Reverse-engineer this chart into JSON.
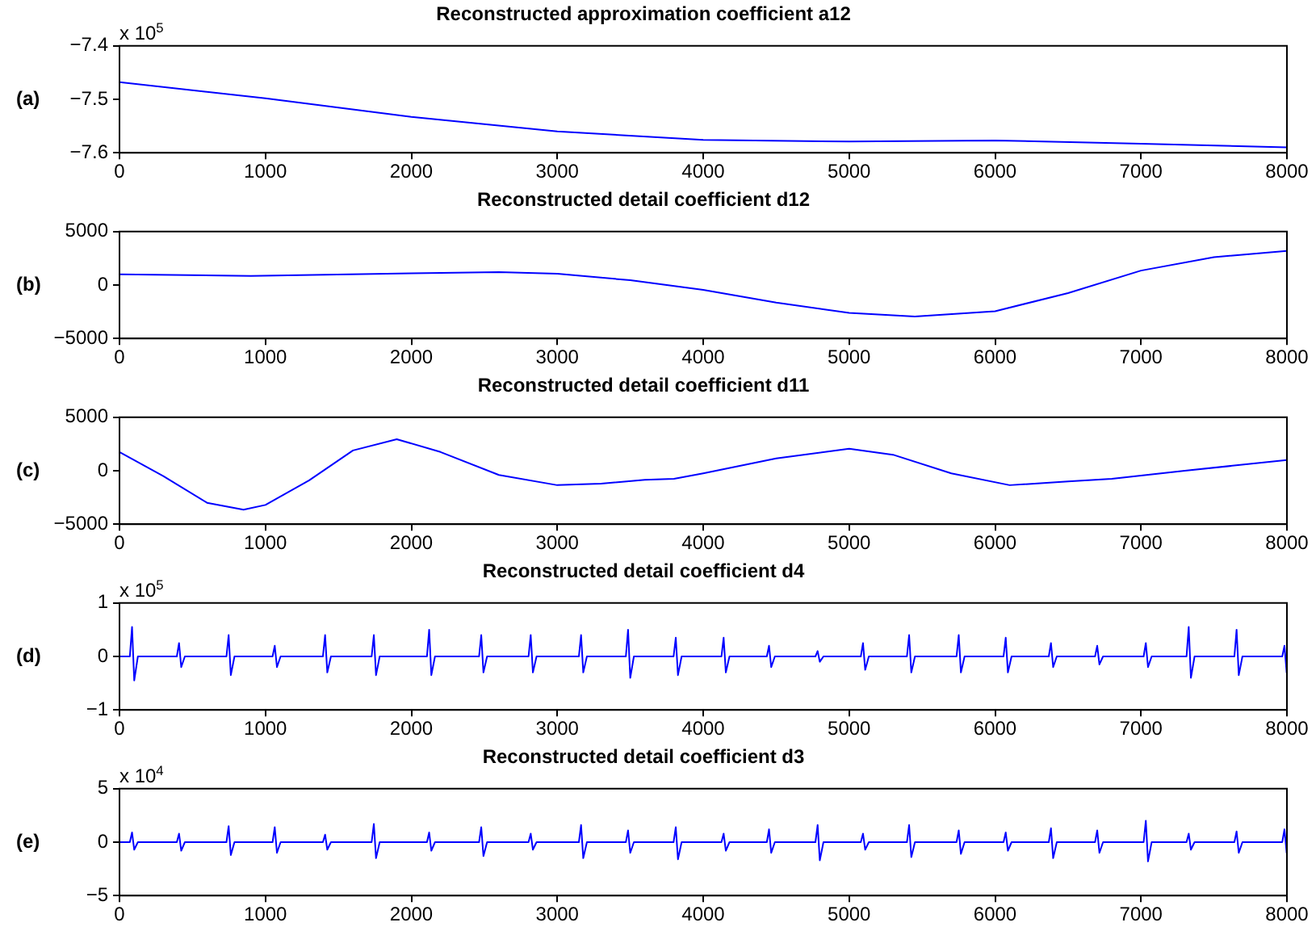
{
  "chart_data": [
    {
      "type": "line",
      "title": "Reconstructed approximation coefficient a12",
      "ylabel": "(a)",
      "annotations": [
        "x 10$^{5}$"
      ],
      "x": [
        0,
        1000,
        2000,
        3000,
        4000,
        5000,
        6000,
        7000,
        8000
      ],
      "series": [
        {
          "color": "#0000ff",
          "values": [
            -7.468,
            -7.498,
            -7.533,
            -7.56,
            -7.576,
            -7.579,
            -7.577,
            -7.583,
            -7.59
          ]
        }
      ],
      "xlim": [
        0,
        8000
      ],
      "xticks": [
        0,
        1000,
        2000,
        3000,
        4000,
        5000,
        6000,
        7000,
        8000
      ],
      "ylim": [
        -7.6,
        -7.4
      ],
      "yticks": [
        -7.6,
        -7.5,
        -7.4
      ],
      "grid": false,
      "legend": false,
      "marker": "none",
      "line_style": "solid"
    },
    {
      "type": "line",
      "title": "Reconstructed detail coefficient d12",
      "ylabel": "(b)",
      "x": [
        0,
        900,
        2000,
        2600,
        3000,
        3500,
        4000,
        4500,
        5000,
        5450,
        6000,
        6500,
        7000,
        7500,
        8000
      ],
      "series": [
        {
          "color": "#0000ff",
          "values": [
            1000,
            850,
            1100,
            1200,
            1050,
            450,
            -450,
            -1650,
            -2600,
            -2950,
            -2450,
            -750,
            1350,
            2600,
            3200
          ]
        }
      ],
      "xlim": [
        0,
        8000
      ],
      "xticks": [
        0,
        1000,
        2000,
        3000,
        4000,
        5000,
        6000,
        7000,
        8000
      ],
      "ylim": [
        -5000,
        5000
      ],
      "yticks": [
        -5000,
        0,
        5000
      ],
      "grid": false,
      "legend": false,
      "marker": "none",
      "line_style": "solid"
    },
    {
      "type": "line",
      "title": "Reconstructed detail coefficient d11",
      "ylabel": "(c)",
      "x": [
        0,
        300,
        600,
        850,
        1000,
        1300,
        1600,
        1900,
        2200,
        2600,
        3000,
        3300,
        3600,
        3800,
        4000,
        4500,
        5000,
        5300,
        5700,
        6100,
        6500,
        6800,
        7300,
        8000
      ],
      "series": [
        {
          "color": "#0000ff",
          "values": [
            1750,
            -500,
            -3000,
            -3650,
            -3200,
            -900,
            1900,
            2950,
            1750,
            -400,
            -1350,
            -1200,
            -850,
            -750,
            -250,
            1150,
            2050,
            1500,
            -250,
            -1350,
            -1000,
            -750,
            0,
            1000
          ]
        }
      ],
      "xlim": [
        0,
        8000
      ],
      "xticks": [
        0,
        1000,
        2000,
        3000,
        4000,
        5000,
        6000,
        7000,
        8000
      ],
      "ylim": [
        -5000,
        5000
      ],
      "yticks": [
        -5000,
        0,
        5000
      ],
      "grid": false,
      "legend": false,
      "marker": "none",
      "line_style": "solid"
    },
    {
      "type": "line",
      "title": "Reconstructed detail coefficient d4",
      "ylabel": "(d)",
      "annotations": [
        "x 10$^{5}$"
      ],
      "x": [
        0,
        71,
        86,
        101,
        126,
        393,
        408,
        423,
        448,
        733,
        748,
        763,
        788,
        1049,
        1064,
        1079,
        1104,
        1394,
        1409,
        1424,
        1449,
        1728,
        1743,
        1758,
        1783,
        2107,
        2122,
        2137,
        2162,
        2464,
        2479,
        2494,
        2519,
        2803,
        2818,
        2833,
        2858,
        3148,
        3163,
        3178,
        3203,
        3470,
        3485,
        3500,
        3525,
        3797,
        3812,
        3827,
        3852,
        4125,
        4140,
        4155,
        4180,
        4436,
        4451,
        4466,
        4491,
        4769,
        4784,
        4799,
        4824,
        5080,
        5095,
        5110,
        5135,
        5396,
        5411,
        5426,
        5451,
        5736,
        5751,
        5766,
        5791,
        6058,
        6073,
        6088,
        6113,
        6368,
        6383,
        6398,
        6423,
        6685,
        6700,
        6715,
        6740,
        7018,
        7033,
        7048,
        7073,
        7312,
        7327,
        7342,
        7367,
        7640,
        7655,
        7670,
        7695,
        7968,
        7983,
        7998,
        8000
      ],
      "series": [
        {
          "color": "#0000ff",
          "values": [
            0,
            0,
            0.55,
            -0.45,
            0,
            0,
            0.25,
            -0.2,
            0,
            0,
            0.4,
            -0.35,
            0,
            0,
            0.2,
            -0.2,
            0,
            0,
            0.4,
            -0.3,
            0,
            0,
            0.4,
            -0.35,
            0,
            0,
            0.5,
            -0.35,
            0,
            0,
            0.4,
            -0.3,
            0,
            0,
            0.4,
            -0.3,
            0,
            0,
            0.4,
            -0.3,
            0,
            0,
            0.5,
            -0.4,
            0,
            0,
            0.35,
            -0.35,
            0,
            0,
            0.35,
            -0.3,
            0,
            0,
            0.2,
            -0.2,
            0,
            0,
            0.1,
            -0.1,
            0,
            0,
            0.25,
            -0.25,
            0,
            0,
            0.4,
            -0.3,
            0,
            0,
            0.4,
            -0.3,
            0,
            0,
            0.35,
            -0.3,
            0,
            0,
            0.25,
            -0.2,
            0,
            0,
            0.2,
            -0.15,
            0,
            0,
            0.25,
            -0.2,
            0,
            0,
            0.55,
            -0.4,
            0,
            0,
            0.5,
            -0.35,
            0,
            0,
            0.2,
            -0.3,
            0
          ]
        }
      ],
      "xlim": [
        0,
        8000
      ],
      "xticks": [
        0,
        1000,
        2000,
        3000,
        4000,
        5000,
        6000,
        7000,
        8000
      ],
      "ylim": [
        -1,
        1
      ],
      "yticks": [
        -1,
        0,
        1
      ],
      "grid": false,
      "legend": false,
      "marker": "none",
      "line_style": "solid"
    },
    {
      "type": "line",
      "title": "Reconstructed detail coefficient d3",
      "ylabel": "(e)",
      "annotations": [
        "x 10$^{4}$"
      ],
      "x": [
        0,
        71,
        86,
        101,
        126,
        393,
        408,
        423,
        448,
        733,
        748,
        763,
        788,
        1049,
        1064,
        1079,
        1104,
        1394,
        1409,
        1424,
        1449,
        1728,
        1743,
        1758,
        1783,
        2107,
        2122,
        2137,
        2162,
        2464,
        2479,
        2494,
        2519,
        2803,
        2818,
        2833,
        2858,
        3148,
        3163,
        3178,
        3203,
        3470,
        3485,
        3500,
        3525,
        3797,
        3812,
        3827,
        3852,
        4125,
        4140,
        4155,
        4180,
        4436,
        4451,
        4466,
        4491,
        4769,
        4784,
        4799,
        4824,
        5080,
        5095,
        5110,
        5135,
        5396,
        5411,
        5426,
        5451,
        5736,
        5751,
        5766,
        5791,
        6058,
        6073,
        6088,
        6113,
        6368,
        6383,
        6398,
        6423,
        6685,
        6700,
        6715,
        6740,
        7018,
        7033,
        7048,
        7073,
        7312,
        7327,
        7342,
        7367,
        7640,
        7655,
        7670,
        7695,
        7968,
        7983,
        7998,
        8000
      ],
      "series": [
        {
          "color": "#0000ff",
          "values": [
            0,
            0,
            0.9,
            -0.7,
            0,
            0,
            0.8,
            -0.8,
            0,
            0,
            1.5,
            -1.2,
            0,
            0,
            1.4,
            -1,
            0,
            0,
            0.7,
            -0.7,
            0,
            0,
            1.7,
            -1.5,
            0,
            0,
            0.9,
            -0.8,
            0,
            0,
            1.4,
            -1.3,
            0,
            0,
            0.8,
            -0.7,
            0,
            0,
            1.6,
            -1.5,
            0,
            0,
            1.1,
            -1,
            0,
            0,
            1.4,
            -1.6,
            0,
            0,
            0.8,
            -0.8,
            0,
            0,
            1.2,
            -1,
            0,
            0,
            1.6,
            -1.7,
            0,
            0,
            0.8,
            -0.7,
            0,
            0,
            1.6,
            -1.4,
            0,
            0,
            1.1,
            -1.1,
            0,
            0,
            0.9,
            -0.8,
            0,
            0,
            1.3,
            -1.5,
            0,
            0,
            1.1,
            -1,
            0,
            0,
            2,
            -1.8,
            0,
            0,
            0.8,
            -0.7,
            0,
            0,
            1,
            -1,
            0,
            0,
            1.2,
            -1,
            0
          ]
        }
      ],
      "xlim": [
        0,
        8000
      ],
      "xticks": [
        0,
        1000,
        2000,
        3000,
        4000,
        5000,
        6000,
        7000,
        8000
      ],
      "ylim": [
        -5,
        5
      ],
      "yticks": [
        -5,
        0,
        5
      ],
      "grid": false,
      "legend": false,
      "marker": "none",
      "line_style": "solid"
    }
  ]
}
